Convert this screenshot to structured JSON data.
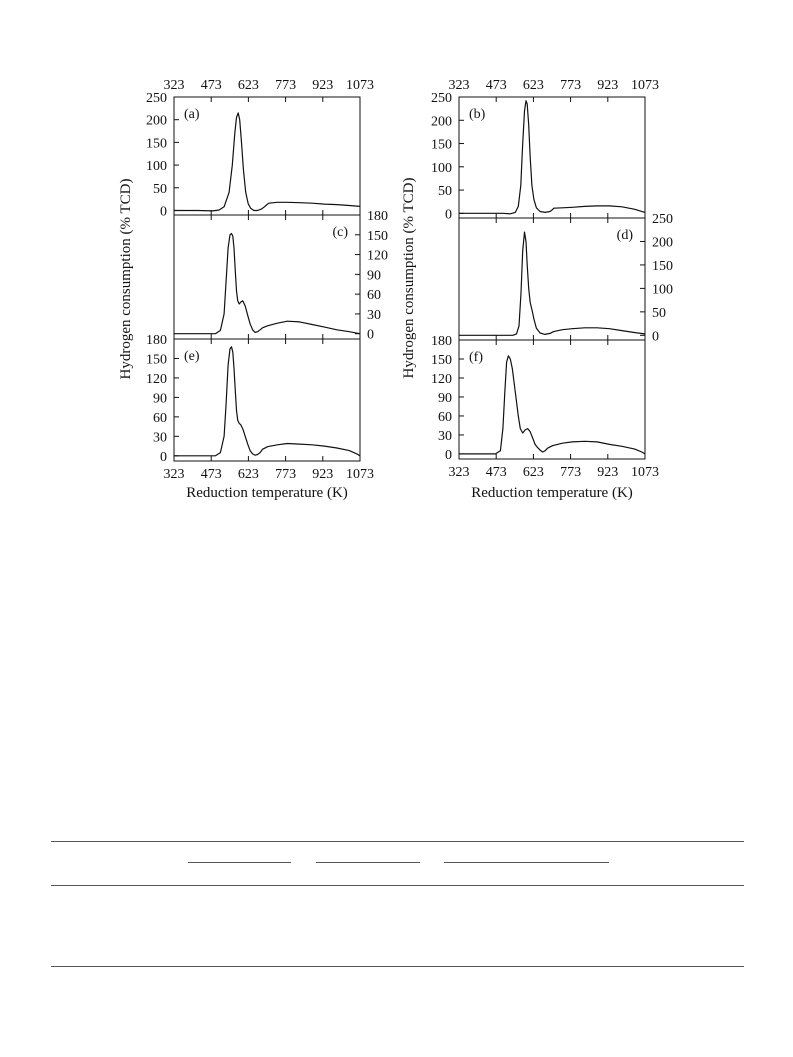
{
  "chart_data": [
    {
      "type": "line",
      "column": "left",
      "panels": [
        {
          "label": "(a)",
          "x_ticks_top": [
            323,
            473,
            623,
            773,
            923,
            1073
          ],
          "y_ticks": [
            0,
            50,
            100,
            150,
            200,
            250
          ],
          "y_axis_side": "left",
          "ylim": [
            -10,
            250
          ],
          "x": [
            323,
            420,
            480,
            505,
            525,
            545,
            558,
            568,
            575,
            582,
            588,
            595,
            603,
            612,
            622,
            632,
            645,
            660,
            675,
            688,
            696,
            705,
            740,
            780,
            830,
            880,
            930,
            980,
            1030,
            1073
          ],
          "y": [
            0,
            0,
            -1,
            1,
            8,
            40,
            100,
            170,
            205,
            215,
            200,
            150,
            90,
            40,
            15,
            5,
            0,
            0,
            3,
            8,
            12,
            16,
            18,
            18,
            17,
            16,
            14,
            13,
            11,
            9
          ]
        },
        {
          "label": "(c)",
          "y_ticks": [
            0,
            30,
            60,
            90,
            120,
            150,
            180
          ],
          "y_axis_side": "right",
          "ylim": [
            -8,
            180
          ],
          "x": [
            323,
            420,
            490,
            510,
            525,
            533,
            541,
            549,
            555,
            560,
            565,
            570,
            575,
            580,
            586,
            592,
            600,
            610,
            620,
            630,
            640,
            650,
            660,
            670,
            680,
            700,
            740,
            780,
            830,
            880,
            930,
            980,
            1030,
            1073
          ],
          "y": [
            0,
            0,
            0,
            5,
            30,
            80,
            130,
            150,
            152,
            148,
            130,
            95,
            65,
            50,
            45,
            48,
            50,
            42,
            28,
            15,
            6,
            2,
            3,
            6,
            9,
            12,
            16,
            19,
            18,
            14,
            10,
            6,
            3,
            0
          ]
        },
        {
          "label": "(e)",
          "y_ticks": [
            0,
            30,
            60,
            90,
            120,
            150,
            180
          ],
          "y_axis_side": "left",
          "x_ticks_bottom": [
            323,
            473,
            623,
            773,
            923,
            1073
          ],
          "ylim": [
            -8,
            180
          ],
          "x": [
            323,
            420,
            490,
            510,
            525,
            533,
            541,
            549,
            555,
            560,
            565,
            570,
            575,
            580,
            586,
            592,
            600,
            610,
            620,
            630,
            640,
            650,
            660,
            670,
            680,
            700,
            740,
            780,
            830,
            880,
            930,
            980,
            1030,
            1060,
            1073
          ],
          "y": [
            0,
            0,
            0,
            5,
            30,
            80,
            140,
            165,
            168,
            160,
            135,
            100,
            70,
            55,
            50,
            48,
            42,
            30,
            18,
            8,
            3,
            1,
            2,
            5,
            10,
            14,
            17,
            19,
            18,
            17,
            15,
            12,
            8,
            3,
            0
          ]
        }
      ],
      "xlabel": "Reduction temperature (K)",
      "ylabel": "Hydrogen consumption (% TCD)",
      "xlim": [
        323,
        1073
      ]
    },
    {
      "type": "line",
      "column": "right",
      "panels": [
        {
          "label": "(b)",
          "x_ticks_top": [
            323,
            473,
            623,
            773,
            923,
            1073
          ],
          "y_ticks": [
            0,
            50,
            100,
            150,
            200,
            250
          ],
          "y_axis_side": "left",
          "ylim": [
            -10,
            250
          ],
          "x": [
            323,
            420,
            500,
            530,
            550,
            562,
            572,
            580,
            587,
            593,
            598,
            604,
            610,
            617,
            625,
            635,
            650,
            670,
            690,
            700,
            705,
            740,
            780,
            830,
            880,
            930,
            980,
            1030,
            1073
          ],
          "y": [
            0,
            0,
            0,
            -1,
            2,
            15,
            60,
            150,
            220,
            242,
            235,
            190,
            120,
            60,
            30,
            12,
            4,
            2,
            4,
            8,
            11,
            12,
            13,
            15,
            16,
            16,
            14,
            9,
            2
          ]
        },
        {
          "label": "(d)",
          "y_ticks": [
            0,
            50,
            100,
            150,
            200,
            250
          ],
          "y_axis_side": "right",
          "ylim": [
            -10,
            250
          ],
          "x": [
            323,
            420,
            500,
            540,
            555,
            565,
            573,
            580,
            587,
            593,
            598,
            604,
            610,
            617,
            625,
            635,
            650,
            670,
            690,
            705,
            740,
            780,
            830,
            880,
            930,
            980,
            1030,
            1073
          ],
          "y": [
            0,
            0,
            0,
            0,
            3,
            20,
            90,
            180,
            220,
            200,
            150,
            100,
            70,
            55,
            35,
            15,
            5,
            2,
            4,
            8,
            12,
            14,
            16,
            16,
            14,
            10,
            6,
            3
          ]
        },
        {
          "label": "(f)",
          "y_ticks": [
            0,
            30,
            60,
            90,
            120,
            150,
            180
          ],
          "y_axis_side": "left",
          "x_ticks_bottom": [
            323,
            473,
            623,
            773,
            923,
            1073
          ],
          "ylim": [
            -8,
            180
          ],
          "x": [
            323,
            420,
            470,
            490,
            500,
            508,
            515,
            522,
            530,
            538,
            546,
            554,
            562,
            570,
            580,
            590,
            600,
            610,
            620,
            630,
            640,
            650,
            660,
            670,
            680,
            700,
            740,
            780,
            830,
            880,
            930,
            980,
            1030,
            1060,
            1073
          ],
          "y": [
            0,
            0,
            0,
            5,
            40,
            100,
            145,
            155,
            150,
            135,
            110,
            85,
            60,
            40,
            33,
            38,
            40,
            35,
            25,
            15,
            10,
            6,
            3,
            5,
            9,
            13,
            17,
            19,
            20,
            19,
            15,
            12,
            8,
            3,
            0
          ]
        }
      ],
      "xlabel": "Reduction temperature (K)",
      "ylabel": "Hydrogen consumption (% TCD)",
      "xlim": [
        323,
        1073
      ]
    }
  ]
}
